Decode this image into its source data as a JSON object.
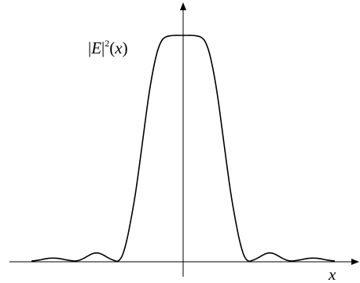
{
  "chart_data": {
    "type": "line",
    "ylabel": {
      "bar_open": "|",
      "symbol": "E",
      "bar_close": "|",
      "exponent": "2",
      "paren_open": "(",
      "variable": "x",
      "paren_close": ")"
    },
    "xlabel": "x",
    "xlim": [
      -3.5,
      3.5
    ],
    "ylim": [
      0,
      1
    ],
    "grid": false,
    "series": [
      {
        "x": [
          -3.5,
          -3.4,
          -3.3,
          -3.2,
          -3.1,
          -3.0,
          -2.9,
          -2.8,
          -2.7,
          -2.6,
          -2.5,
          -2.4,
          -2.3,
          -2.2,
          -2.1,
          -2.0,
          -1.9,
          -1.8,
          -1.7,
          -1.6,
          -1.5,
          -1.4,
          -1.3,
          -1.2,
          -1.1,
          -1.0,
          -0.9,
          -0.8,
          -0.7,
          -0.6,
          -0.5,
          -0.4,
          -0.3,
          -0.2,
          -0.1,
          0.0,
          0.1,
          0.2,
          0.3,
          0.4,
          0.5,
          0.6,
          0.7,
          0.8,
          0.9,
          1.0,
          1.1,
          1.2,
          1.3,
          1.4,
          1.5,
          1.6,
          1.7,
          1.8,
          1.9,
          2.0,
          2.1,
          2.2,
          2.3,
          2.4,
          2.5,
          2.6,
          2.7,
          2.8,
          2.9,
          3.0,
          3.1,
          3.2,
          3.3,
          3.4,
          3.5
        ],
        "y": [
          0.0,
          0.002,
          0.005,
          0.009,
          0.012,
          0.013,
          0.012,
          0.009,
          0.005,
          0.002,
          0.0,
          0.003,
          0.011,
          0.022,
          0.032,
          0.036,
          0.032,
          0.022,
          0.011,
          0.003,
          0.0,
          0.026,
          0.092,
          0.188,
          0.3,
          0.437,
          0.582,
          0.724,
          0.839,
          0.925,
          0.975,
          0.993,
          0.998,
          1.0,
          1.0,
          1.0,
          1.0,
          1.0,
          0.998,
          0.993,
          0.975,
          0.925,
          0.839,
          0.724,
          0.582,
          0.437,
          0.3,
          0.188,
          0.092,
          0.026,
          0.0,
          0.003,
          0.011,
          0.022,
          0.032,
          0.036,
          0.032,
          0.022,
          0.011,
          0.003,
          0.0,
          0.002,
          0.005,
          0.009,
          0.012,
          0.013,
          0.012,
          0.009,
          0.005,
          0.002,
          0.0
        ]
      }
    ]
  }
}
